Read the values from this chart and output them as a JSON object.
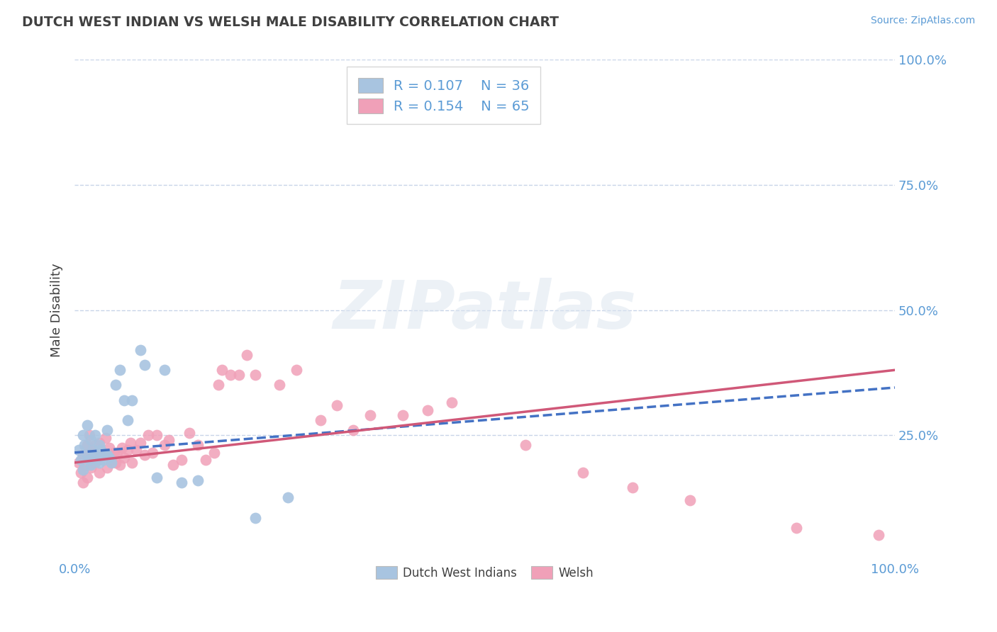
{
  "title": "DUTCH WEST INDIAN VS WELSH MALE DISABILITY CORRELATION CHART",
  "source": "Source: ZipAtlas.com",
  "ylabel": "Male Disability",
  "xlim": [
    0.0,
    1.0
  ],
  "ylim": [
    0.0,
    1.0
  ],
  "legend1_R": "0.107",
  "legend1_N": "36",
  "legend2_R": "0.154",
  "legend2_N": "65",
  "blue_color": "#a8c4e0",
  "pink_color": "#f0a0b8",
  "blue_line_color": "#4472c4",
  "pink_line_color": "#d05878",
  "title_color": "#404040",
  "axis_label_color": "#5b9bd5",
  "grid_color": "#c8d4e8",
  "background_color": "#ffffff",
  "watermark_text": "ZIPatlas",
  "dutch_x": [
    0.005,
    0.008,
    0.01,
    0.01,
    0.012,
    0.015,
    0.015,
    0.018,
    0.02,
    0.02,
    0.022,
    0.025,
    0.025,
    0.028,
    0.03,
    0.03,
    0.032,
    0.035,
    0.038,
    0.04,
    0.04,
    0.042,
    0.045,
    0.05,
    0.055,
    0.06,
    0.065,
    0.07,
    0.08,
    0.085,
    0.1,
    0.11,
    0.13,
    0.15,
    0.22,
    0.26
  ],
  "dutch_y": [
    0.22,
    0.2,
    0.18,
    0.25,
    0.23,
    0.21,
    0.27,
    0.2,
    0.19,
    0.24,
    0.22,
    0.21,
    0.25,
    0.2,
    0.195,
    0.23,
    0.22,
    0.2,
    0.21,
    0.21,
    0.26,
    0.205,
    0.195,
    0.35,
    0.38,
    0.32,
    0.28,
    0.32,
    0.42,
    0.39,
    0.165,
    0.38,
    0.155,
    0.16,
    0.085,
    0.125
  ],
  "welsh_x": [
    0.005,
    0.008,
    0.01,
    0.01,
    0.012,
    0.015,
    0.015,
    0.018,
    0.018,
    0.02,
    0.022,
    0.025,
    0.025,
    0.028,
    0.03,
    0.03,
    0.035,
    0.038,
    0.04,
    0.042,
    0.045,
    0.048,
    0.05,
    0.052,
    0.055,
    0.058,
    0.06,
    0.065,
    0.068,
    0.07,
    0.075,
    0.08,
    0.085,
    0.09,
    0.095,
    0.1,
    0.11,
    0.115,
    0.12,
    0.13,
    0.14,
    0.15,
    0.16,
    0.17,
    0.175,
    0.18,
    0.19,
    0.2,
    0.21,
    0.22,
    0.25,
    0.27,
    0.3,
    0.32,
    0.34,
    0.36,
    0.4,
    0.43,
    0.46,
    0.55,
    0.62,
    0.68,
    0.75,
    0.88,
    0.98
  ],
  "welsh_y": [
    0.195,
    0.175,
    0.155,
    0.21,
    0.19,
    0.165,
    0.23,
    0.2,
    0.25,
    0.185,
    0.215,
    0.195,
    0.23,
    0.205,
    0.175,
    0.235,
    0.21,
    0.245,
    0.185,
    0.225,
    0.2,
    0.215,
    0.195,
    0.215,
    0.19,
    0.225,
    0.205,
    0.22,
    0.235,
    0.195,
    0.22,
    0.235,
    0.21,
    0.25,
    0.215,
    0.25,
    0.23,
    0.24,
    0.19,
    0.2,
    0.255,
    0.23,
    0.2,
    0.215,
    0.35,
    0.38,
    0.37,
    0.37,
    0.41,
    0.37,
    0.35,
    0.38,
    0.28,
    0.31,
    0.26,
    0.29,
    0.29,
    0.3,
    0.315,
    0.23,
    0.175,
    0.145,
    0.12,
    0.065,
    0.05
  ]
}
